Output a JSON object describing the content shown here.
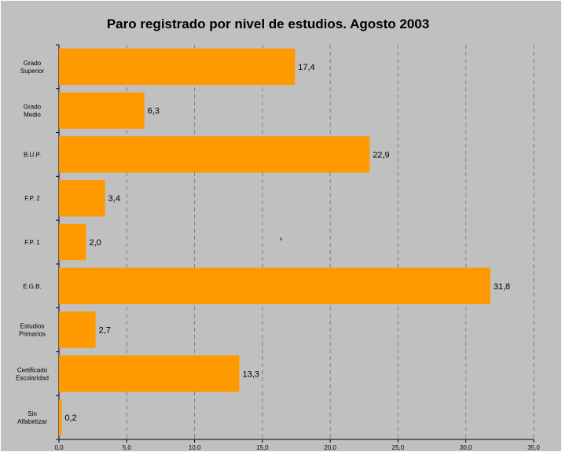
{
  "chart_data": {
    "type": "bar",
    "orientation": "horizontal",
    "title": "Paro registrado por nivel de estudios. Agosto 2003",
    "categories": [
      [
        "Grado",
        "Superior"
      ],
      [
        "Grado",
        "Medio"
      ],
      [
        "B.U.P."
      ],
      [
        "F.P. 2"
      ],
      [
        "F.P. 1"
      ],
      [
        "E.G.B."
      ],
      [
        "Estudios",
        "Primarios"
      ],
      [
        "Certificado",
        "Escolaridad"
      ],
      [
        "Sin",
        "Alfabetizar"
      ]
    ],
    "values": [
      17.4,
      6.3,
      22.9,
      3.4,
      2.0,
      31.8,
      2.7,
      13.3,
      0.2
    ],
    "data_labels": [
      "17,4",
      "6,3",
      "22,9",
      "3,4",
      "2,0",
      "31,8",
      "2,7",
      "13,3",
      "0,2"
    ],
    "xlim": [
      0,
      35
    ],
    "x_ticks": [
      0,
      5,
      10,
      15,
      20,
      25,
      30,
      35
    ],
    "x_tick_labels": [
      "0,0",
      "5,0",
      "10,0",
      "15,0",
      "20,0",
      "25,0",
      "30,0",
      "35,0"
    ],
    "xlabel": "",
    "ylabel": "",
    "grid": "vertical dashed",
    "legend": "none",
    "stray_mark": "º",
    "colors": {
      "bar": "#ff9900",
      "background": "#c0c0c0",
      "grid": "#808080"
    }
  }
}
